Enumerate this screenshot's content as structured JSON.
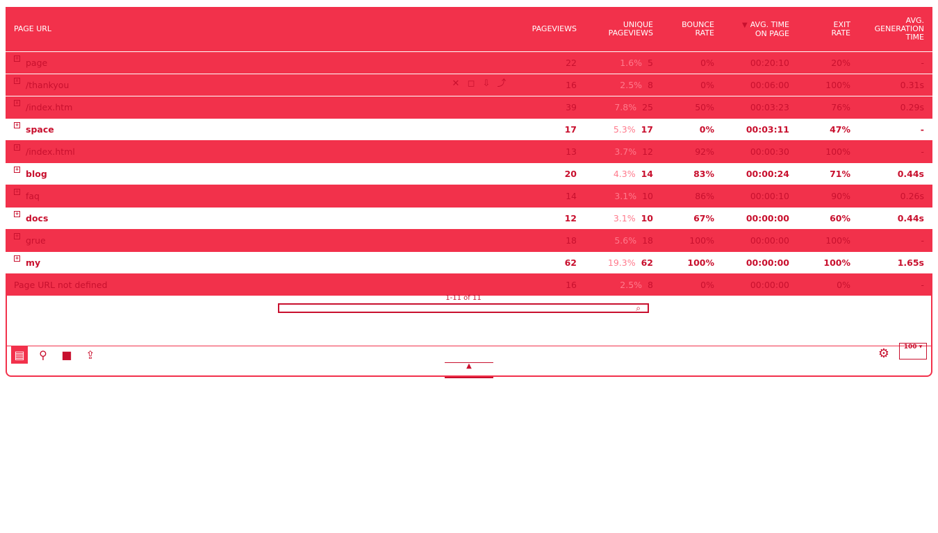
{
  "table": {
    "headers": {
      "label": "PAGE URL",
      "pageviews": "PAGEVIEWS",
      "unique_line1": "UNIQUE",
      "unique_line2": "PAGEVIEWS",
      "bounce_line1": "BOUNCE",
      "bounce_line2": "RATE",
      "avgtime_line1": "AVG. TIME",
      "avgtime_line2": "ON PAGE",
      "exit_line1": "EXIT",
      "exit_line2": "RATE",
      "gen_line1": "AVG.",
      "gen_line2": "GENERATION",
      "gen_line3": "TIME"
    },
    "rows": [
      {
        "label": "page",
        "pageviews": "22",
        "pct": "1.6%",
        "unique": "5",
        "bounce": "0%",
        "avgtime": "00:20:10",
        "exit": "20%",
        "gen": "-",
        "style": "red",
        "icon": "+"
      },
      {
        "label": "/thankyou",
        "pageviews": "16",
        "pct": "2.5%",
        "unique": "8",
        "bounce": "0%",
        "avgtime": "00:06:00",
        "exit": "100%",
        "gen": "0.31s",
        "style": "red",
        "icon": "x"
      },
      {
        "label": "/index.htm",
        "pageviews": "39",
        "pct": "7.8%",
        "unique": "25",
        "bounce": "50%",
        "avgtime": "00:03:23",
        "exit": "76%",
        "gen": "0.29s",
        "style": "red",
        "icon": "x"
      },
      {
        "label": "space",
        "pageviews": "17",
        "pct": "5.3%",
        "unique": "17",
        "bounce": "0%",
        "avgtime": "00:03:11",
        "exit": "47%",
        "gen": "-",
        "style": "white",
        "icon": "+"
      },
      {
        "label": "/index.html",
        "pageviews": "13",
        "pct": "3.7%",
        "unique": "12",
        "bounce": "92%",
        "avgtime": "00:00:30",
        "exit": "100%",
        "gen": "-",
        "style": "red",
        "icon": "x"
      },
      {
        "label": "blog",
        "pageviews": "20",
        "pct": "4.3%",
        "unique": "14",
        "bounce": "83%",
        "avgtime": "00:00:24",
        "exit": "71%",
        "gen": "0.44s",
        "style": "white",
        "icon": "+"
      },
      {
        "label": "faq",
        "pageviews": "14",
        "pct": "3.1%",
        "unique": "10",
        "bounce": "86%",
        "avgtime": "00:00:10",
        "exit": "90%",
        "gen": "0.26s",
        "style": "red",
        "icon": "+"
      },
      {
        "label": "docs",
        "pageviews": "12",
        "pct": "3.1%",
        "unique": "10",
        "bounce": "67%",
        "avgtime": "00:00:00",
        "exit": "60%",
        "gen": "0.44s",
        "style": "white",
        "icon": "+"
      },
      {
        "label": "grue",
        "pageviews": "18",
        "pct": "5.6%",
        "unique": "18",
        "bounce": "100%",
        "avgtime": "00:00:00",
        "exit": "100%",
        "gen": "-",
        "style": "red",
        "icon": "+"
      },
      {
        "label": "my",
        "pageviews": "62",
        "pct": "19.3%",
        "unique": "62",
        "bounce": "100%",
        "avgtime": "00:00:00",
        "exit": "100%",
        "gen": "1.65s",
        "style": "white",
        "icon": "+"
      },
      {
        "label": "Page URL not defined",
        "pageviews": "16",
        "pct": "2.5%",
        "unique": "8",
        "bounce": "0%",
        "avgtime": "00:00:00",
        "exit": "0%",
        "gen": "-",
        "style": "red",
        "icon": ""
      }
    ]
  },
  "pager": {
    "range": "1-11 of 11"
  },
  "footer": {
    "limit": "100"
  },
  "icons": {
    "table_view": "table-icon",
    "bar_view": "bar-chart-icon",
    "pie_view": "pie-chart-icon",
    "export": "export-icon",
    "settings": "settings-icon",
    "search": "search-icon",
    "collapse": "chevron-up-icon"
  }
}
